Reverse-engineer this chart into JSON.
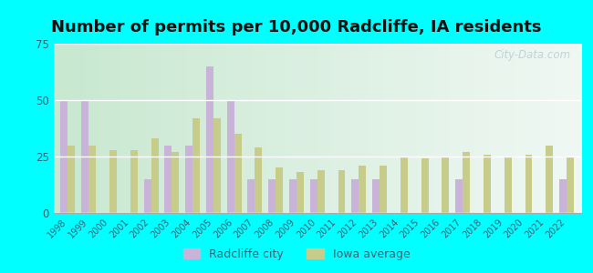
{
  "title": "Number of permits per 10,000 Radcliffe, IA residents",
  "years": [
    1998,
    1999,
    2000,
    2001,
    2002,
    2003,
    2004,
    2005,
    2006,
    2007,
    2008,
    2009,
    2010,
    2011,
    2012,
    2013,
    2014,
    2015,
    2016,
    2017,
    2018,
    2019,
    2020,
    2021,
    2022
  ],
  "radcliffe": [
    50,
    50,
    0,
    0,
    15,
    30,
    30,
    65,
    50,
    15,
    15,
    15,
    15,
    0,
    15,
    15,
    0,
    0,
    0,
    15,
    0,
    0,
    0,
    0,
    15
  ],
  "iowa": [
    30,
    30,
    28,
    28,
    33,
    27,
    42,
    42,
    35,
    29,
    20,
    18,
    19,
    19,
    21,
    21,
    25,
    24,
    25,
    27,
    26,
    25,
    26,
    30,
    25
  ],
  "radcliffe_color": "#c9b3d9",
  "iowa_color": "#c8cc8a",
  "chart_bg_left": "#d8edd8",
  "chart_bg_right": "#e8f5f0",
  "outer_bg": "#00ffff",
  "ylim": [
    0,
    75
  ],
  "yticks": [
    0,
    25,
    50,
    75
  ],
  "title_fontsize": 13,
  "legend_radcliffe": "Radcliffe city",
  "legend_iowa": "Iowa average",
  "watermark": "City-Data.com",
  "watermark_color": "#b8cdd8",
  "tick_color": "#336677",
  "bar_width": 0.35
}
